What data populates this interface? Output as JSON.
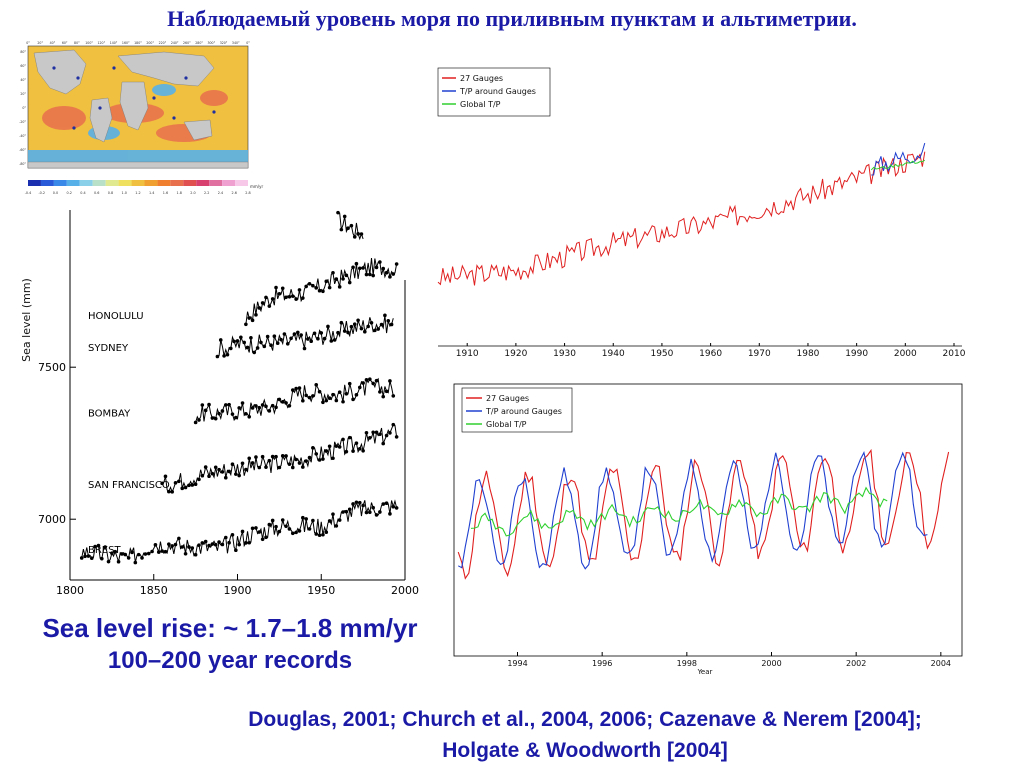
{
  "slide": {
    "title": "Наблюдаемый уровень моря по приливным пунктам и альтиметрии.",
    "rise_line1": "Sea level rise: ~ 1.7–1.8 mm/yr",
    "rise_line2": "100–200 year records",
    "references": "Douglas, 2001; Church et al., 2004, 2006; Cazenave & Nerem [2004]; Holgate & Woodworth [2004]"
  },
  "map": {
    "top_ticks": [
      "0°",
      "20°",
      "40°",
      "60°",
      "80°",
      "100°",
      "120°",
      "140°",
      "160°",
      "180°",
      "200°",
      "220°",
      "240°",
      "260°",
      "280°",
      "300°",
      "320°",
      "340°",
      "0°"
    ],
    "left_ticks": [
      "80°",
      "60°",
      "40°",
      "20°",
      "0°",
      "-20°",
      "-40°",
      "-60°",
      "-80°"
    ],
    "colorbar_ticks": [
      "-0.4",
      "-0.2",
      "0.0",
      "0.2",
      "0.4",
      "0.6",
      "0.8",
      "1.0",
      "1.2",
      "1.4",
      "1.6",
      "1.8",
      "2.0",
      "2.2",
      "2.4",
      "2.6",
      "2.8"
    ],
    "colorbar_unit": "mm/yr",
    "colors": {
      "ocean": "#f0c040",
      "land": "#c8c8c8",
      "cool": "#58b0e8",
      "warm": "#e8704c"
    }
  },
  "chart_data": [
    {
      "id": "tide-gauges",
      "type": "line",
      "xlabel": "",
      "ylabel": "Sea level (mm)",
      "xlim": [
        1800,
        2000
      ],
      "ylim": [
        6800,
        8050
      ],
      "x_ticks": [
        1800,
        1850,
        1900,
        1950,
        2000
      ],
      "y_ticks": [
        7000,
        7500
      ],
      "grid": false,
      "series": [
        {
          "name": "",
          "label": "",
          "x": [
            1960,
            1975
          ],
          "y": [
            7985,
            7935
          ]
        },
        {
          "name": "HONOLULU",
          "label": "HONOLULU",
          "x": [
            1905,
            1920,
            1940,
            1960,
            1980,
            1995
          ],
          "y": [
            7665,
            7730,
            7745,
            7790,
            7830,
            7825
          ]
        },
        {
          "name": "SYDNEY",
          "label": "SYDNEY",
          "x": [
            1888,
            1900,
            1920,
            1940,
            1960,
            1980,
            1993
          ],
          "y": [
            7560,
            7575,
            7580,
            7590,
            7615,
            7645,
            7640
          ]
        },
        {
          "name": "BOMBAY",
          "label": "BOMBAY",
          "x": [
            1875,
            1900,
            1920,
            1940,
            1960,
            1980,
            1993
          ],
          "y": [
            7345,
            7355,
            7370,
            7420,
            7410,
            7435,
            7430
          ]
        },
        {
          "name": "SAN FRANCISCO",
          "label": "SAN FRANCISCO",
          "x": [
            1855,
            1880,
            1900,
            1920,
            1940,
            1960,
            1980,
            1995
          ],
          "y": [
            7110,
            7150,
            7170,
            7180,
            7200,
            7230,
            7260,
            7290
          ]
        },
        {
          "name": "BREST",
          "label": "BREST",
          "x": [
            1807,
            1835,
            1850,
            1870,
            1890,
            1910,
            1930,
            1950,
            1970,
            1995
          ],
          "y": [
            6895,
            6870,
            6920,
            6910,
            6905,
            6955,
            6980,
            6975,
            7030,
            7045
          ]
        }
      ]
    },
    {
      "id": "gauges-vs-altimetry-century",
      "type": "line",
      "xlabel": "",
      "ylabel": "",
      "xlim": [
        1904,
        2010
      ],
      "x_ticks": [
        1910,
        1920,
        1930,
        1940,
        1950,
        1960,
        1970,
        1980,
        1990,
        2000,
        2010
      ],
      "ylim": [
        -160,
        160
      ],
      "legend": "top-left",
      "grid": false,
      "series": [
        {
          "name": "27 Gauges",
          "color": "#e02020",
          "x": [
            1904,
            1920,
            1940,
            1960,
            1980,
            2004
          ],
          "y": [
            -100,
            -90,
            -55,
            -30,
            5,
            55
          ]
        },
        {
          "name": "T/P around Gauges",
          "color": "#2040d0",
          "x": [
            1993,
            1996,
            2000,
            2004
          ],
          "y": [
            40,
            45,
            55,
            60
          ]
        },
        {
          "name": "Global T/P",
          "color": "#30d030",
          "x": [
            1993,
            1996,
            2000,
            2004
          ],
          "y": [
            38,
            40,
            45,
            48
          ]
        }
      ]
    },
    {
      "id": "gauges-vs-altimetry-1993-2004",
      "type": "line",
      "xlabel": "Year",
      "ylabel": "",
      "xlim": [
        1992.5,
        2004.5
      ],
      "x_ticks": [
        1994,
        1996,
        1998,
        2000,
        2002,
        2004
      ],
      "ylim": [
        -100,
        140
      ],
      "legend": "top-left",
      "grid": false,
      "series": [
        {
          "name": "27 Gauges",
          "color": "#e02020"
        },
        {
          "name": "T/P around Gauges",
          "color": "#2040d0"
        },
        {
          "name": "Global T/P",
          "color": "#30d030"
        }
      ]
    }
  ]
}
